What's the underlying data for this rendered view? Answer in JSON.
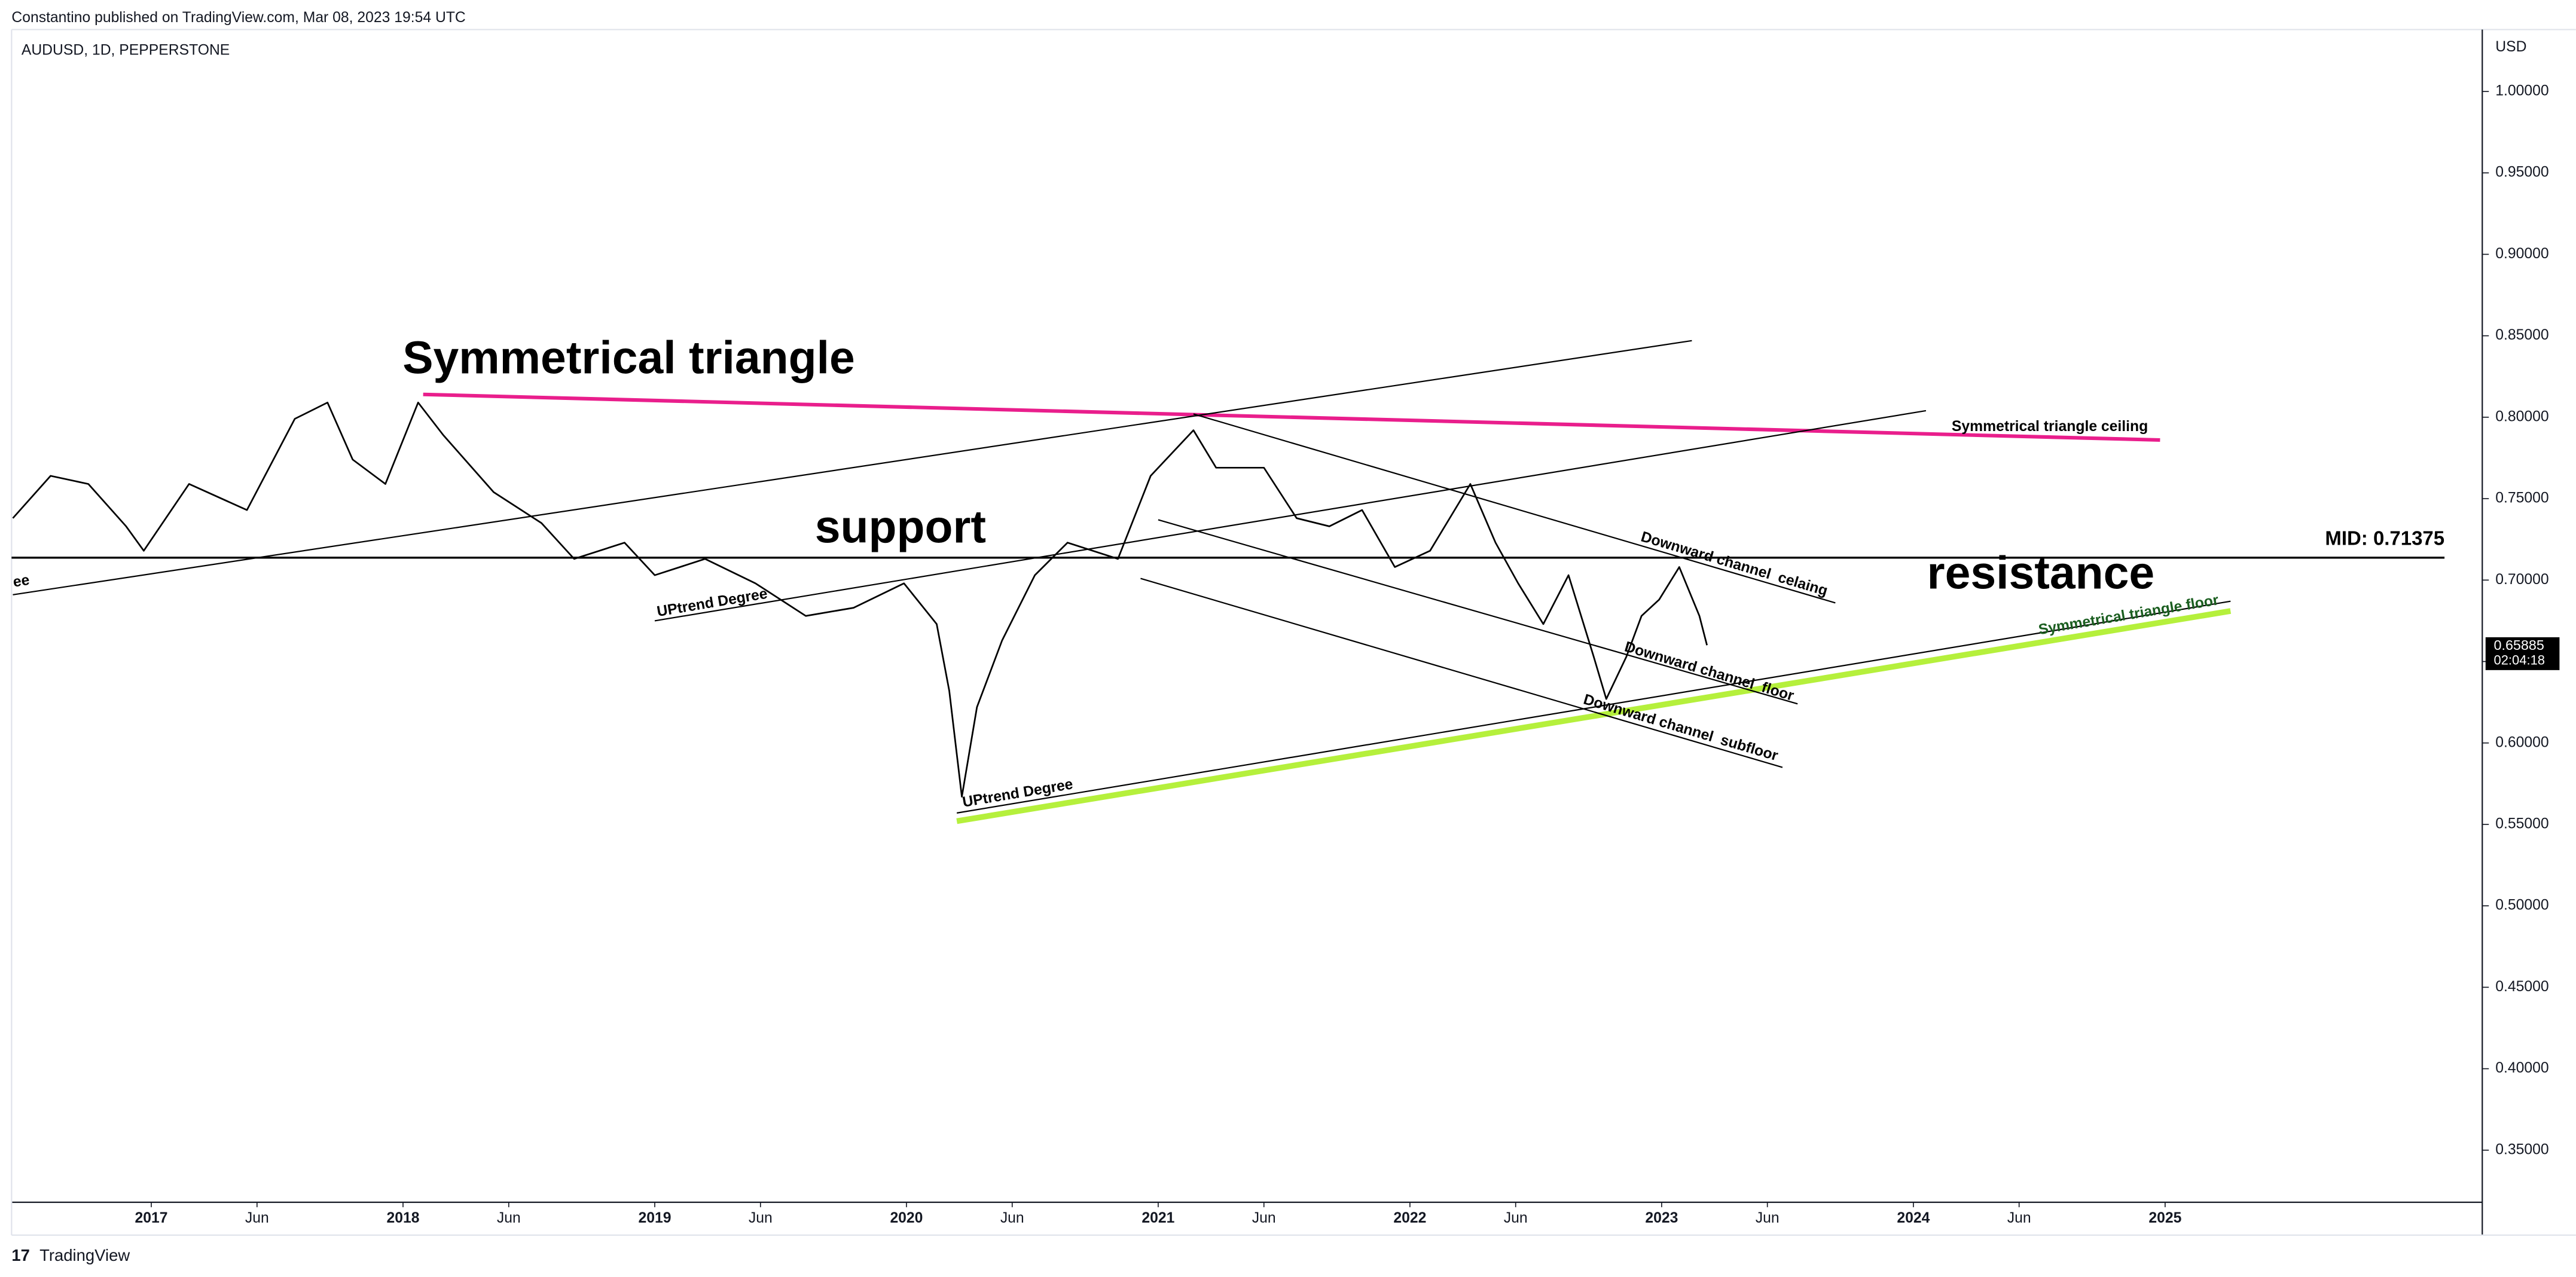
{
  "header": {
    "publisher": "Constantino published on TradingView.com, Mar 08, 2023 19:54 UTC",
    "symbol": "AUDUSD, 1D, PEPPERSTONE",
    "currency": "USD",
    "brand": "TradingView"
  },
  "chart_data": {
    "type": "line",
    "color": "#000000",
    "x": [
      2016.45,
      2016.6,
      2016.75,
      2016.9,
      2016.97,
      2017.15,
      2017.38,
      2017.57,
      2017.7,
      2017.8,
      2017.93,
      2018.06,
      2018.16,
      2018.36,
      2018.55,
      2018.68,
      2018.88,
      2019.0,
      2019.2,
      2019.4,
      2019.6,
      2019.79,
      2019.99,
      2020.12,
      2020.17,
      2020.22,
      2020.28,
      2020.38,
      2020.51,
      2020.64,
      2020.84,
      2020.97,
      2021.14,
      2021.23,
      2021.42,
      2021.55,
      2021.68,
      2021.81,
      2021.94,
      2022.08,
      2022.24,
      2022.34,
      2022.43,
      2022.53,
      2022.63,
      2022.73,
      2022.78,
      2022.86,
      2022.92,
      2022.99,
      2023.07,
      2023.15,
      2023.18
    ],
    "values": [
      0.738,
      0.764,
      0.759,
      0.733,
      0.718,
      0.759,
      0.743,
      0.799,
      0.809,
      0.774,
      0.759,
      0.809,
      0.789,
      0.754,
      0.735,
      0.713,
      0.723,
      0.703,
      0.713,
      0.698,
      0.678,
      0.683,
      0.698,
      0.673,
      0.632,
      0.567,
      0.622,
      0.663,
      0.703,
      0.723,
      0.713,
      0.764,
      0.792,
      0.769,
      0.769,
      0.738,
      0.733,
      0.743,
      0.708,
      0.718,
      0.759,
      0.723,
      0.698,
      0.673,
      0.703,
      0.653,
      0.627,
      0.653,
      0.678,
      0.688,
      0.708,
      0.678,
      0.66
    ],
    "xlim": [
      2016.445,
      2026.26
    ],
    "ylim": [
      0.318,
      1.038
    ],
    "xticks": [
      2017,
      {
        "value": 2017.42,
        "label": "Jun"
      },
      2018,
      {
        "value": 2018.42,
        "label": "Jun"
      },
      2019,
      {
        "value": 2019.42,
        "label": "Jun"
      },
      2020,
      {
        "value": 2020.42,
        "label": "Jun"
      },
      2021,
      {
        "value": 2021.42,
        "label": "Jun"
      },
      2022,
      {
        "value": 2022.42,
        "label": "Jun"
      },
      2023,
      {
        "value": 2023.42,
        "label": "Jun"
      },
      2024,
      {
        "value": 2024.42,
        "label": "Jun"
      },
      2025
    ],
    "yticks": [
      {
        "value": 0.35,
        "label": "0.35000"
      },
      {
        "value": 0.4,
        "label": "0.40000"
      },
      {
        "value": 0.45,
        "label": "0.45000"
      },
      {
        "value": 0.5,
        "label": "0.50000"
      },
      {
        "value": 0.55,
        "label": "0.55000"
      },
      {
        "value": 0.6,
        "label": "0.60000"
      },
      {
        "value": 0.65,
        "label": "0.65000"
      },
      {
        "value": 0.7,
        "label": "0.70000"
      },
      {
        "value": 0.75,
        "label": "0.75000"
      },
      {
        "value": 0.8,
        "label": "0.80000"
      },
      {
        "value": 0.85,
        "label": "0.85000"
      },
      {
        "value": 0.9,
        "label": "0.90000"
      },
      {
        "value": 0.95,
        "label": "0.95000"
      },
      {
        "value": 1.0,
        "label": "1.00000"
      }
    ],
    "drawings": [
      {
        "x": [
          2018.08,
          2024.98
        ],
        "y": [
          0.814,
          0.786
        ],
        "color": "#e91e8c",
        "label": "Symmetrical triangle ceiling"
      },
      {
        "x": [
          2020.2,
          2025.26
        ],
        "y": [
          0.552,
          0.681
        ],
        "color": "#b5f03c",
        "label": "Symmetrical triangle floor"
      },
      {
        "x": [
          2020.2,
          2025.26
        ],
        "y": [
          0.557,
          0.687
        ],
        "color": "#000000",
        "label": "UPtrend Degree"
      },
      {
        "x": [
          2016.45,
          2023.12
        ],
        "y": [
          0.691,
          0.847
        ],
        "color": "#000000",
        "label": "ee"
      },
      {
        "x": [
          2019.0,
          2024.05
        ],
        "y": [
          0.675,
          0.804
        ],
        "color": "#000000",
        "label": "UPtrend Degree"
      },
      {
        "x": [
          2021.14,
          2023.69
        ],
        "y": [
          0.802,
          0.686
        ],
        "color": "#000000",
        "label": "Downward channel  celaing"
      },
      {
        "x": [
          2021.0,
          2023.54
        ],
        "y": [
          0.737,
          0.624
        ],
        "color": "#000000",
        "label": "Downward channel  floor"
      },
      {
        "x": [
          2020.93,
          2023.48
        ],
        "y": [
          0.701,
          0.585
        ],
        "color": "#000000",
        "label": "Downward channel  subfloor"
      }
    ],
    "hlines": [
      {
        "value": 0.71375,
        "label": "MID: 0.71375",
        "color": "#000000"
      }
    ],
    "annotations": [
      "Symmetrical triangle",
      "support",
      "resistance"
    ],
    "last_price": 0.65885,
    "countdown": "02:04:18"
  }
}
